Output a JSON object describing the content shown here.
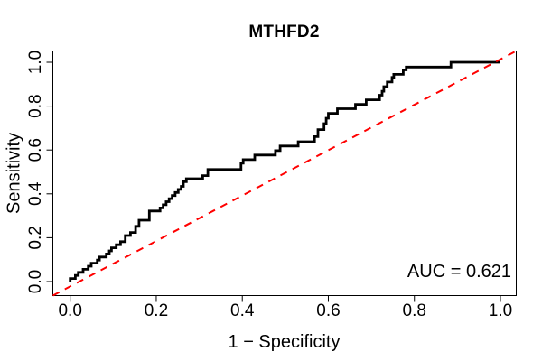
{
  "figure": {
    "background": "#ffffff"
  },
  "chart_data": {
    "type": "line",
    "subtype": "roc_step_curve",
    "title": "MTHFD2",
    "xlabel": "1 − Specificity",
    "ylabel": "Sensitivity",
    "xlim": [
      0,
      1
    ],
    "ylim": [
      0,
      1
    ],
    "grid": false,
    "legend": "none",
    "axis_color": "#000000",
    "x_ticks": [
      0,
      0.2,
      0.4,
      0.6,
      0.8,
      1
    ],
    "y_ticks": [
      0,
      0.2,
      0.4,
      0.6,
      0.8,
      1
    ],
    "x_tick_labels": [
      "0.0",
      "0.2",
      "0.4",
      "0.6",
      "0.8",
      "1.0"
    ],
    "y_tick_labels": [
      "0.0",
      "0.2",
      "0.4",
      "0.6",
      "0.8",
      "1.0"
    ],
    "annotation": {
      "text": "AUC = 0.621",
      "auc_value": 0.621,
      "position": "bottom-right"
    },
    "series": [
      {
        "name": "ROC curve",
        "style": "step",
        "color": "#000000",
        "line_width": 2.8,
        "dash": null,
        "extend_full_box": false,
        "points": [
          [
            0.0,
            0.0
          ],
          [
            0.0,
            0.014
          ],
          [
            0.012,
            0.014
          ],
          [
            0.012,
            0.028
          ],
          [
            0.019,
            0.028
          ],
          [
            0.019,
            0.042
          ],
          [
            0.03,
            0.042
          ],
          [
            0.03,
            0.056
          ],
          [
            0.042,
            0.056
          ],
          [
            0.042,
            0.07
          ],
          [
            0.049,
            0.07
          ],
          [
            0.049,
            0.084
          ],
          [
            0.063,
            0.084
          ],
          [
            0.063,
            0.098
          ],
          [
            0.068,
            0.098
          ],
          [
            0.068,
            0.112
          ],
          [
            0.084,
            0.112
          ],
          [
            0.084,
            0.126
          ],
          [
            0.091,
            0.126
          ],
          [
            0.091,
            0.14
          ],
          [
            0.096,
            0.14
          ],
          [
            0.096,
            0.154
          ],
          [
            0.107,
            0.154
          ],
          [
            0.107,
            0.168
          ],
          [
            0.117,
            0.168
          ],
          [
            0.117,
            0.182
          ],
          [
            0.128,
            0.182
          ],
          [
            0.128,
            0.21
          ],
          [
            0.14,
            0.21
          ],
          [
            0.14,
            0.224
          ],
          [
            0.152,
            0.224
          ],
          [
            0.152,
            0.252
          ],
          [
            0.16,
            0.252
          ],
          [
            0.16,
            0.28
          ],
          [
            0.184,
            0.28
          ],
          [
            0.184,
            0.322
          ],
          [
            0.209,
            0.322
          ],
          [
            0.209,
            0.336
          ],
          [
            0.216,
            0.336
          ],
          [
            0.216,
            0.35
          ],
          [
            0.223,
            0.35
          ],
          [
            0.223,
            0.364
          ],
          [
            0.23,
            0.364
          ],
          [
            0.23,
            0.378
          ],
          [
            0.237,
            0.378
          ],
          [
            0.237,
            0.392
          ],
          [
            0.244,
            0.392
          ],
          [
            0.244,
            0.406
          ],
          [
            0.251,
            0.406
          ],
          [
            0.251,
            0.42
          ],
          [
            0.258,
            0.42
          ],
          [
            0.258,
            0.434
          ],
          [
            0.263,
            0.434
          ],
          [
            0.263,
            0.455
          ],
          [
            0.27,
            0.455
          ],
          [
            0.27,
            0.469
          ],
          [
            0.308,
            0.469
          ],
          [
            0.308,
            0.483
          ],
          [
            0.32,
            0.483
          ],
          [
            0.32,
            0.511
          ],
          [
            0.397,
            0.511
          ],
          [
            0.397,
            0.54
          ],
          [
            0.402,
            0.54
          ],
          [
            0.402,
            0.556
          ],
          [
            0.429,
            0.556
          ],
          [
            0.429,
            0.577
          ],
          [
            0.477,
            0.577
          ],
          [
            0.477,
            0.597
          ],
          [
            0.488,
            0.597
          ],
          [
            0.488,
            0.618
          ],
          [
            0.53,
            0.618
          ],
          [
            0.53,
            0.638
          ],
          [
            0.568,
            0.638
          ],
          [
            0.568,
            0.661
          ],
          [
            0.576,
            0.661
          ],
          [
            0.576,
            0.693
          ],
          [
            0.59,
            0.693
          ],
          [
            0.59,
            0.72
          ],
          [
            0.595,
            0.72
          ],
          [
            0.595,
            0.745
          ],
          [
            0.6,
            0.745
          ],
          [
            0.6,
            0.767
          ],
          [
            0.621,
            0.767
          ],
          [
            0.621,
            0.788
          ],
          [
            0.663,
            0.788
          ],
          [
            0.663,
            0.808
          ],
          [
            0.688,
            0.808
          ],
          [
            0.688,
            0.829
          ],
          [
            0.719,
            0.829
          ],
          [
            0.719,
            0.85
          ],
          [
            0.725,
            0.85
          ],
          [
            0.725,
            0.868
          ],
          [
            0.729,
            0.868
          ],
          [
            0.729,
            0.889
          ],
          [
            0.737,
            0.889
          ],
          [
            0.737,
            0.91
          ],
          [
            0.748,
            0.91
          ],
          [
            0.748,
            0.931
          ],
          [
            0.752,
            0.931
          ],
          [
            0.752,
            0.945
          ],
          [
            0.774,
            0.945
          ],
          [
            0.774,
            0.965
          ],
          [
            0.781,
            0.965
          ],
          [
            0.781,
            0.978
          ],
          [
            0.885,
            0.978
          ],
          [
            0.885,
            1.0
          ],
          [
            1.0,
            1.0
          ]
        ]
      },
      {
        "name": "chance diagonal",
        "style": "dashed",
        "color": "#ff0000",
        "line_width": 2,
        "dash": [
          8,
          7
        ],
        "extend_full_box": true,
        "points": [
          [
            0,
            0
          ],
          [
            1,
            1
          ]
        ]
      }
    ]
  }
}
